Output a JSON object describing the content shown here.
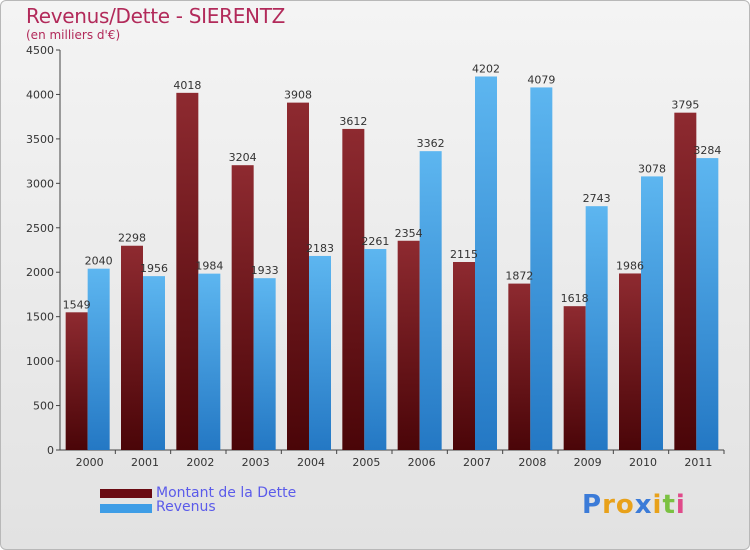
{
  "chart": {
    "title": "Revenus/Dette - SIERENTZ",
    "subtitle": "(en milliers d'€)"
  },
  "legend": [
    {
      "label": "Montant de la Dette"
    },
    {
      "label": "Revenus"
    }
  ],
  "logo": {
    "letters": [
      "P",
      "r",
      "o",
      "x",
      "i",
      "t",
      "i"
    ],
    "colors": [
      "#3b7bd8",
      "#e8a11a",
      "#e8a11a",
      "#3b7bd8",
      "#e8a11a",
      "#7bc142",
      "#e04a8a"
    ]
  },
  "colors": {
    "dette": "#7a1a22",
    "revenus": "#3e9de6",
    "title": "#b22a5a",
    "legend_text": "#5b5bea"
  },
  "chart_data": {
    "type": "bar",
    "title": "Revenus/Dette - SIERENTZ",
    "subtitle": "(en milliers d'€)",
    "categories": [
      "2000",
      "2001",
      "2002",
      "2003",
      "2004",
      "2005",
      "2006",
      "2007",
      "2008",
      "2009",
      "2010",
      "2011"
    ],
    "series": [
      {
        "name": "Montant de la Dette",
        "values": [
          1549,
          2298,
          4018,
          3204,
          3908,
          3612,
          2354,
          2115,
          1872,
          1618,
          1986,
          3795
        ]
      },
      {
        "name": "Revenus",
        "values": [
          2040,
          1956,
          1984,
          1933,
          2183,
          2261,
          3362,
          4202,
          4079,
          2743,
          3078,
          3284
        ]
      }
    ],
    "yticks": [
      0,
      500,
      1000,
      1500,
      2000,
      2500,
      3000,
      3500,
      4000,
      4500
    ],
    "ylim": [
      0,
      4500
    ],
    "grid": false,
    "legend_position": "bottom-left"
  }
}
